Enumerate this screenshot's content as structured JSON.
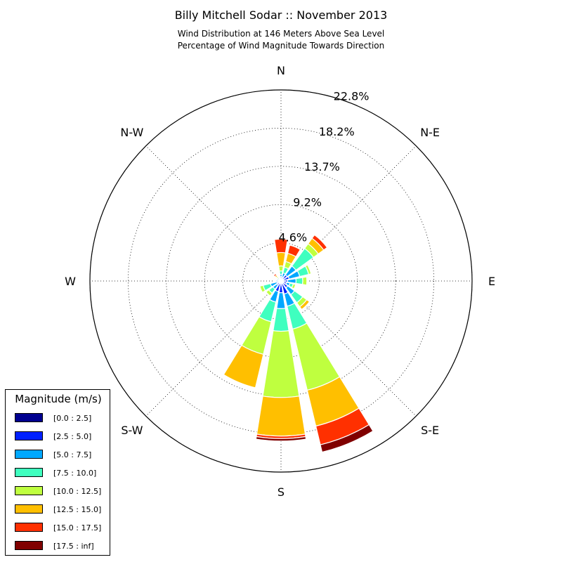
{
  "title": "Billy Mitchell Sodar :: November 2013",
  "subtitle_line1": "Wind Distribution at 146 Meters Above Sea Level",
  "subtitle_line2": "Percentage of Wind Magnitude Towards Direction",
  "chart_data": {
    "type": "windrose",
    "directions": [
      "N",
      "NNE",
      "NE",
      "ENE",
      "E",
      "ESE",
      "SE",
      "SSE",
      "S",
      "SSW",
      "SW",
      "WSW",
      "W",
      "WNW",
      "NW",
      "NNW"
    ],
    "direction_labels": [
      "N",
      "N-E",
      "E",
      "S-E",
      "S",
      "S-W",
      "W",
      "N-W"
    ],
    "radial_ticks": [
      "4.6%",
      "9.2%",
      "13.7%",
      "18.2%",
      "22.8%"
    ],
    "radial_tick_values": [
      4.56,
      9.12,
      13.68,
      18.24,
      22.8
    ],
    "rmax": 22.8,
    "legend_title": "Magnitude (m/s)",
    "bins": [
      "[0.0 : 2.5]",
      "[2.5 : 5.0]",
      "[5.0 : 7.5]",
      "[7.5 : 10.0]",
      "[10.0 : 12.5]",
      "[12.5 : 15.0]",
      "[15.0 : 17.5]",
      "[17.5 : inf]"
    ],
    "colors": [
      "#00008f",
      "#0020ff",
      "#00a8ff",
      "#3fffbf",
      "#bfff3f",
      "#ffbf00",
      "#ff3000",
      "#800000"
    ],
    "series_percent": [
      [
        0.2,
        0.3,
        0.3,
        0.4,
        0.6,
        1.6,
        1.6,
        0.0
      ],
      [
        0.2,
        0.3,
        0.5,
        0.7,
        0.7,
        1.0,
        1.0,
        0.0
      ],
      [
        0.3,
        0.6,
        1.3,
        2.6,
        0.7,
        0.8,
        0.5,
        0.0
      ],
      [
        0.3,
        0.7,
        1.3,
        1.1,
        0.3,
        0.1,
        0.0,
        0.0
      ],
      [
        0.3,
        0.5,
        1.0,
        0.8,
        0.5,
        0.1,
        0.0,
        0.0
      ],
      [
        0.3,
        0.4,
        0.4,
        0.4,
        0.3,
        0.1,
        0.0,
        0.0
      ],
      [
        0.3,
        0.7,
        1.0,
        1.2,
        0.6,
        0.4,
        0.0,
        0.0
      ],
      [
        0.3,
        1.3,
        1.5,
        2.8,
        7.5,
        4.4,
        2.3,
        0.9
      ],
      [
        0.3,
        1.1,
        1.9,
        2.7,
        7.9,
        4.6,
        0.3,
        0.3
      ],
      [
        0.3,
        1.0,
        1.3,
        2.4,
        4.0,
        4.1,
        0.0,
        0.0
      ],
      [
        0.2,
        0.4,
        0.6,
        0.6,
        0.4,
        0.0,
        0.0,
        0.0
      ],
      [
        0.2,
        0.3,
        0.8,
        0.9,
        0.4,
        0.0,
        0.0,
        0.0
      ],
      [
        0.1,
        0.3,
        0.2,
        0.1,
        0.0,
        0.0,
        0.0,
        0.0
      ],
      [
        0.1,
        0.2,
        0.2,
        0.1,
        0.0,
        0.0,
        0.0,
        0.0
      ],
      [
        0.1,
        0.1,
        0.1,
        0.2,
        0.2,
        0.2,
        0.2,
        0.0
      ],
      [
        0.1,
        0.1,
        0.1,
        0.0,
        0.0,
        0.0,
        0.0,
        0.0
      ]
    ]
  }
}
